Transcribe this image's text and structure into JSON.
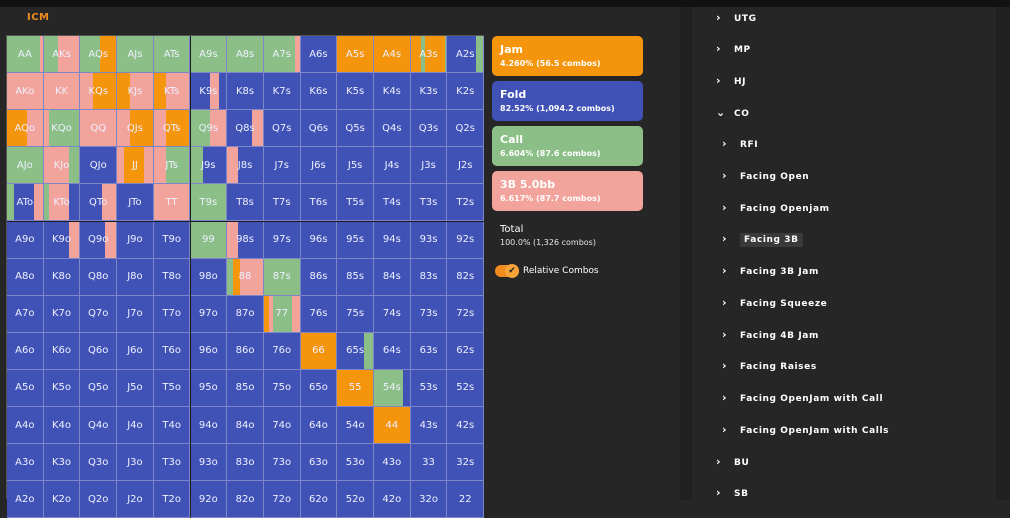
{
  "header": {
    "mode_label": "ICM"
  },
  "colors": {
    "jam": "#f5950c",
    "fold": "#4052b5",
    "call": "#8cbf87",
    "raise": "#f2a39b"
  },
  "grid": {
    "hands": [
      [
        "AA",
        "AKs",
        "AQs",
        "AJs",
        "ATs",
        "A9s",
        "A8s",
        "A7s",
        "A6s",
        "A5s",
        "A4s",
        "A3s",
        "A2s"
      ],
      [
        "AKo",
        "KK",
        "KQs",
        "KJs",
        "KTs",
        "K9s",
        "K8s",
        "K7s",
        "K6s",
        "K5s",
        "K4s",
        "K3s",
        "K2s"
      ],
      [
        "AQo",
        "KQo",
        "QQ",
        "QJs",
        "QTs",
        "Q9s",
        "Q8s",
        "Q7s",
        "Q6s",
        "Q5s",
        "Q4s",
        "Q3s",
        "Q2s"
      ],
      [
        "AJo",
        "KJo",
        "QJo",
        "JJ",
        "JTs",
        "J9s",
        "J8s",
        "J7s",
        "J6s",
        "J5s",
        "J4s",
        "J3s",
        "J2s"
      ],
      [
        "ATo",
        "KTo",
        "QTo",
        "JTo",
        "TT",
        "T9s",
        "T8s",
        "T7s",
        "T6s",
        "T5s",
        "T4s",
        "T3s",
        "T2s"
      ],
      [
        "A9o",
        "K9o",
        "Q9o",
        "J9o",
        "T9o",
        "99",
        "98s",
        "97s",
        "96s",
        "95s",
        "94s",
        "93s",
        "92s"
      ],
      [
        "A8o",
        "K8o",
        "Q8o",
        "J8o",
        "T8o",
        "98o",
        "88",
        "87s",
        "86s",
        "85s",
        "84s",
        "83s",
        "82s"
      ],
      [
        "A7o",
        "K7o",
        "Q7o",
        "J7o",
        "T7o",
        "97o",
        "87o",
        "77",
        "76s",
        "75s",
        "74s",
        "73s",
        "72s"
      ],
      [
        "A6o",
        "K6o",
        "Q6o",
        "J6o",
        "T6o",
        "96o",
        "86o",
        "76o",
        "66",
        "65s",
        "64s",
        "63s",
        "62s"
      ],
      [
        "A5o",
        "K5o",
        "Q5o",
        "J5o",
        "T5o",
        "95o",
        "85o",
        "75o",
        "65o",
        "55",
        "54s",
        "53s",
        "52s"
      ],
      [
        "A4o",
        "K4o",
        "Q4o",
        "J4o",
        "T4o",
        "94o",
        "84o",
        "74o",
        "64o",
        "54o",
        "44",
        "43s",
        "42s"
      ],
      [
        "A3o",
        "K3o",
        "Q3o",
        "J3o",
        "T3o",
        "93o",
        "83o",
        "73o",
        "63o",
        "53o",
        "43o",
        "33",
        "32s"
      ],
      [
        "A2o",
        "K2o",
        "Q2o",
        "J2o",
        "T2o",
        "92o",
        "82o",
        "72o",
        "62o",
        "52o",
        "42o",
        "32o",
        "22"
      ]
    ],
    "mixes": {
      "0,0": [
        [
          "call",
          0.92
        ],
        [
          "raise",
          0.08
        ]
      ],
      "0,1": [
        [
          "call",
          0.4
        ],
        [
          "raise",
          0.6
        ]
      ],
      "0,2": [
        [
          "call",
          0.55
        ],
        [
          "jam",
          0.45
        ]
      ],
      "0,3": [
        [
          "call",
          1
        ]
      ],
      "0,4": [
        [
          "call",
          1
        ]
      ],
      "0,5": [
        [
          "call",
          1
        ]
      ],
      "0,6": [
        [
          "call",
          1
        ]
      ],
      "0,7": [
        [
          "call",
          0.88
        ],
        [
          "raise",
          0.12
        ]
      ],
      "0,9": [
        [
          "jam",
          1
        ]
      ],
      "0,10": [
        [
          "jam",
          1
        ]
      ],
      "0,11": [
        [
          "jam",
          0.3
        ],
        [
          "call",
          0.1
        ],
        [
          "jam",
          0.55
        ],
        [
          "call",
          0.05
        ]
      ],
      "0,12": [
        [
          "fold",
          0.8
        ],
        [
          "call",
          0.2
        ]
      ],
      "1,0": [
        [
          "raise",
          1
        ]
      ],
      "1,1": [
        [
          "raise",
          1
        ]
      ],
      "1,2": [
        [
          "raise",
          0.35
        ],
        [
          "jam",
          0.65
        ]
      ],
      "1,3": [
        [
          "jam",
          0.35
        ],
        [
          "raise",
          0.65
        ]
      ],
      "1,4": [
        [
          "jam",
          0.35
        ],
        [
          "raise",
          0.65
        ]
      ],
      "1,5": [
        [
          "fold",
          0.55
        ],
        [
          "raise",
          0.25
        ],
        [
          "fold",
          0.2
        ]
      ],
      "2,0": [
        [
          "jam",
          0.55
        ],
        [
          "raise",
          0.45
        ]
      ],
      "2,1": [
        [
          "raise",
          0.15
        ],
        [
          "call",
          0.85
        ]
      ],
      "2,2": [
        [
          "raise",
          1
        ]
      ],
      "2,3": [
        [
          "raise",
          0.35
        ],
        [
          "jam",
          0.65
        ]
      ],
      "2,4": [
        [
          "raise",
          0.35
        ],
        [
          "jam",
          0.65
        ]
      ],
      "2,5": [
        [
          "call",
          0.55
        ],
        [
          "raise",
          0.45
        ]
      ],
      "2,6": [
        [
          "fold",
          0.7
        ],
        [
          "raise",
          0.3
        ]
      ],
      "3,0": [
        [
          "call",
          1
        ]
      ],
      "3,1": [
        [
          "raise",
          0.7
        ],
        [
          "call",
          0.3
        ]
      ],
      "3,2": [
        [
          "fold",
          1
        ]
      ],
      "3,3": [
        [
          "raise",
          0.2
        ],
        [
          "jam",
          0.55
        ],
        [
          "raise",
          0.25
        ]
      ],
      "3,4": [
        [
          "raise",
          0.35
        ],
        [
          "call",
          0.65
        ]
      ],
      "3,5": [
        [
          "call",
          0.35
        ],
        [
          "fold",
          0.65
        ]
      ],
      "3,6": [
        [
          "raise",
          0.3
        ],
        [
          "fold",
          0.7
        ]
      ],
      "4,0": [
        [
          "call",
          0.2
        ],
        [
          "fold",
          0.55
        ],
        [
          "raise",
          0.25
        ]
      ],
      "4,1": [
        [
          "call",
          0.15
        ],
        [
          "raise",
          0.55
        ],
        [
          "fold",
          0.3
        ]
      ],
      "4,2": [
        [
          "fold",
          0.6
        ],
        [
          "raise",
          0.4
        ]
      ],
      "4,3": [
        [
          "fold",
          1
        ]
      ],
      "4,4": [
        [
          "raise",
          1
        ]
      ],
      "4,5": [
        [
          "call",
          1
        ]
      ],
      "5,1": [
        [
          "fold",
          0.7
        ],
        [
          "raise",
          0.3
        ]
      ],
      "5,2": [
        [
          "fold",
          0.7
        ],
        [
          "raise",
          0.3
        ]
      ],
      "5,5": [
        [
          "call",
          1
        ]
      ],
      "5,6": [
        [
          "raise",
          0.3
        ],
        [
          "fold",
          0.7
        ]
      ],
      "6,6": [
        [
          "call",
          0.15
        ],
        [
          "jam",
          0.2
        ],
        [
          "raise",
          0.65
        ]
      ],
      "6,7": [
        [
          "call",
          1
        ]
      ],
      "7,7": [
        [
          "jam",
          0.15
        ],
        [
          "raise",
          0.1
        ],
        [
          "call",
          0.55
        ],
        [
          "raise",
          0.2
        ]
      ],
      "8,8": [
        [
          "jam",
          1
        ]
      ],
      "8,9": [
        [
          "fold",
          0.75
        ],
        [
          "call",
          0.25
        ]
      ],
      "9,9": [
        [
          "jam",
          1
        ]
      ],
      "9,10": [
        [
          "call",
          0.8
        ],
        [
          "fold",
          0.2
        ]
      ],
      "10,10": [
        [
          "jam",
          1
        ]
      ],
      "10,11": [
        [
          "fold",
          1
        ]
      ]
    }
  },
  "legend": {
    "jam": {
      "title": "Jam",
      "stat": "4.260% (56.5 combos)"
    },
    "fold": {
      "title": "Fold",
      "stat": "82.52% (1,094.2 combos)"
    },
    "call": {
      "title": "Call",
      "stat": "6.604% (87.6 combos)"
    },
    "raise": {
      "title": "3B 5.0bb",
      "stat": "6.617% (87.7 combos)"
    }
  },
  "total": {
    "label": "Total",
    "value": "100.0% (1,326 combos)"
  },
  "toggle": {
    "label": "Relative Combos",
    "checked": true,
    "knob_glyph": "✔"
  },
  "tree": {
    "utg": "UTG",
    "mp": "MP",
    "hj": "HJ",
    "co": "CO",
    "co_children": {
      "rfi": "RFI",
      "facing_open": "Facing Open",
      "facing_openjam": "Facing Openjam",
      "facing_3b": "Facing 3B",
      "facing_3b_jam": "Facing 3B Jam",
      "facing_squeeze": "Facing Squeeze",
      "facing_4b_jam": "Facing 4B Jam",
      "facing_raises": "Facing Raises",
      "facing_openjam_call": "Facing OpenJam with Call",
      "facing_openjam_calls": "Facing OpenJam with Calls"
    },
    "bu": "BU",
    "sb": "SB",
    "chevron_right": "›",
    "chevron_down": "⌄"
  }
}
